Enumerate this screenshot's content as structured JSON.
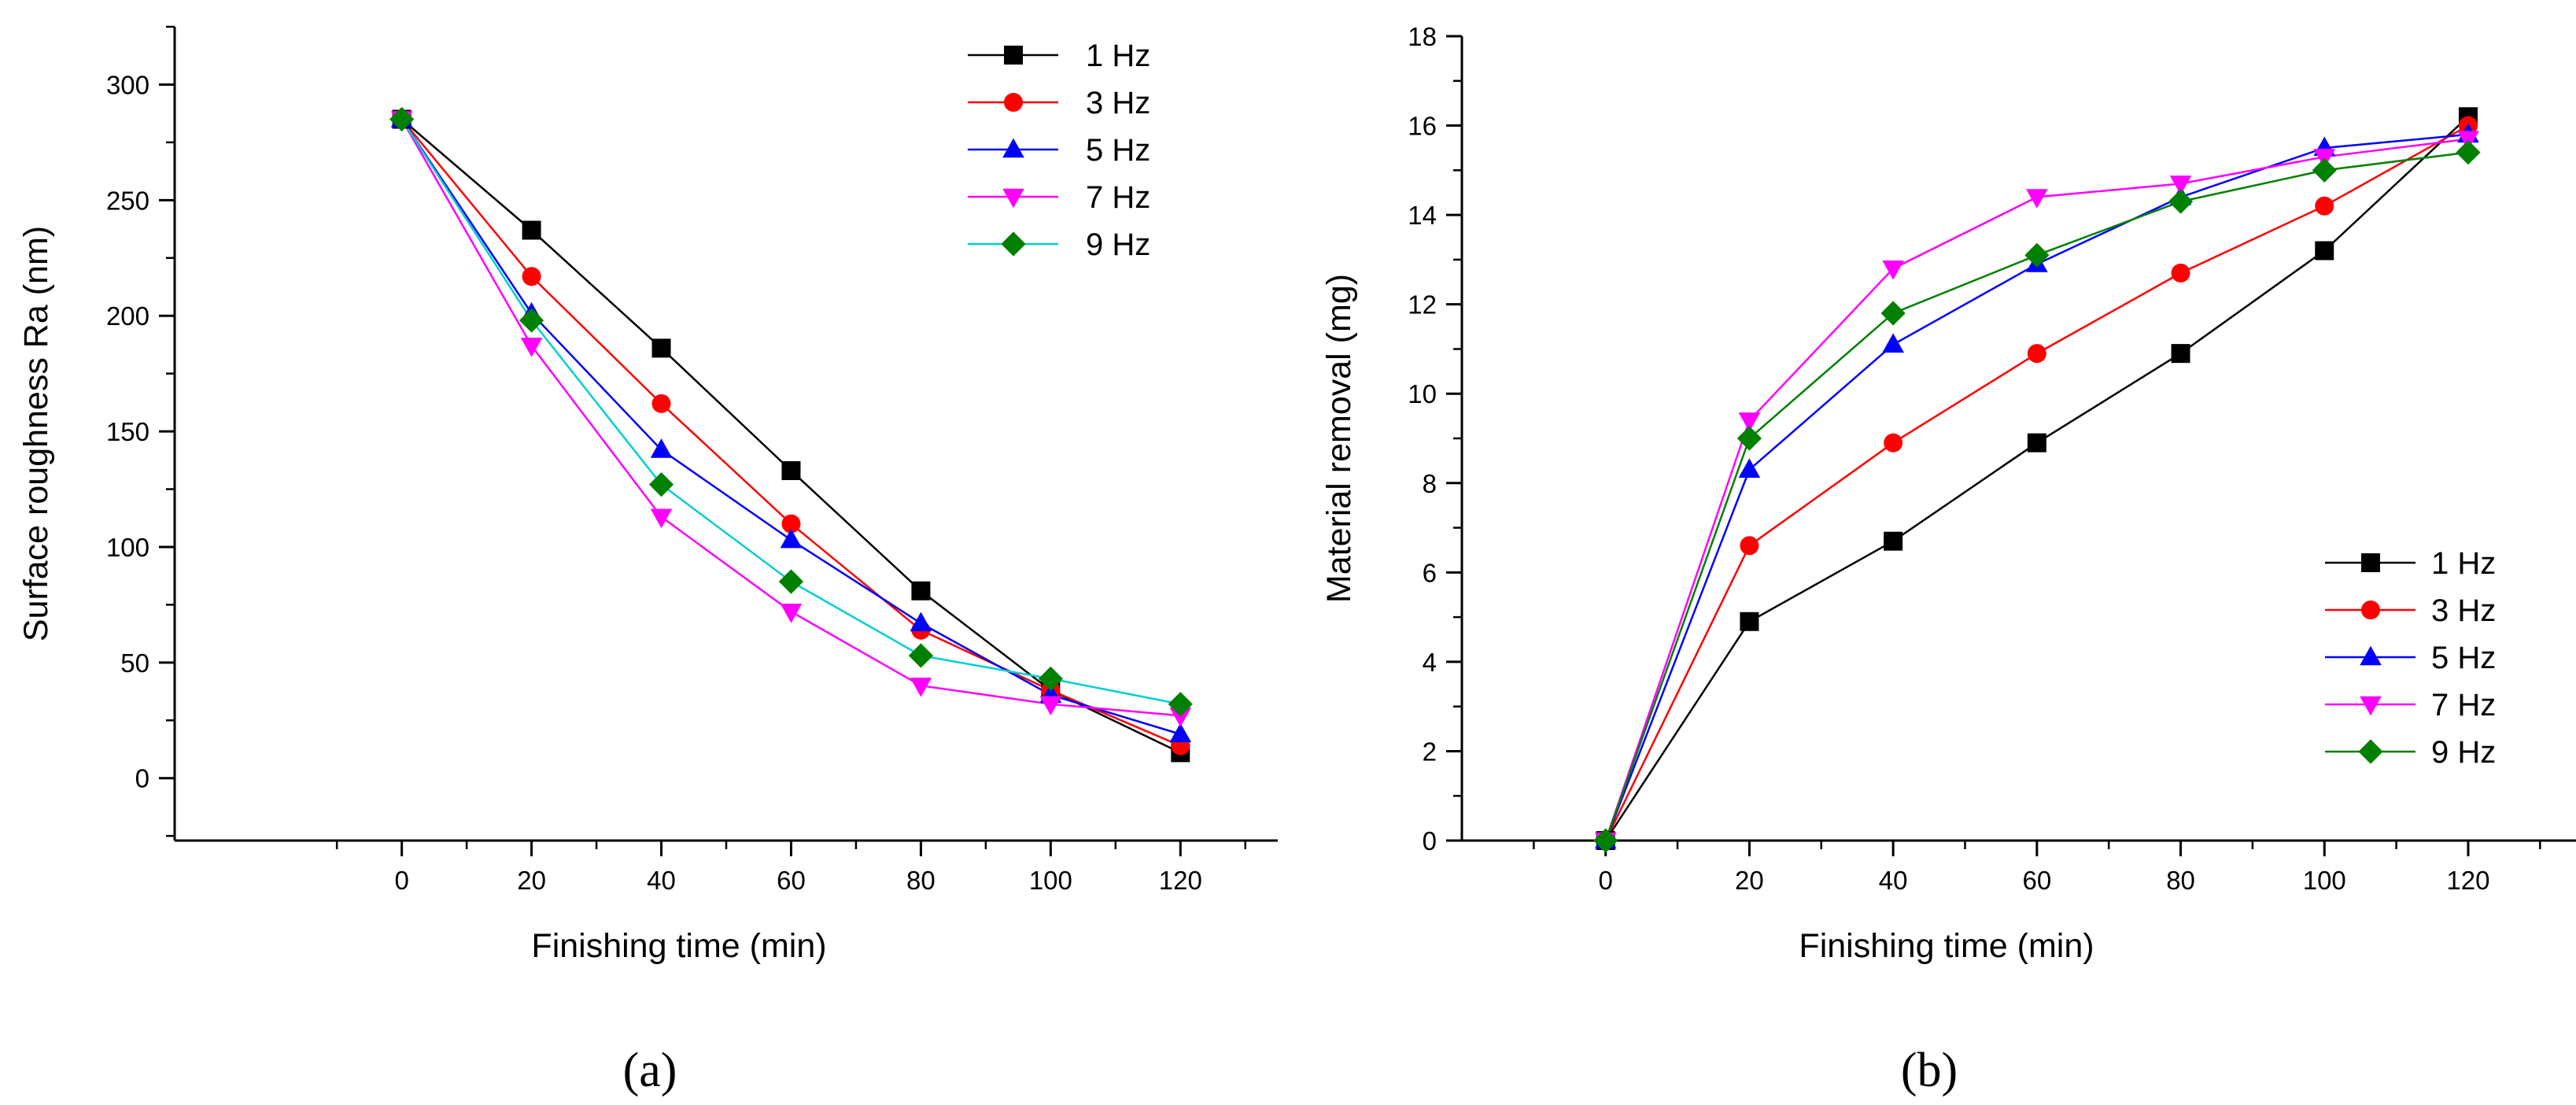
{
  "figure": {
    "panel_labels": [
      "(a)",
      "(b)"
    ]
  },
  "chart_data": [
    {
      "type": "line",
      "panel": "(a)",
      "title": "",
      "xlabel": "Finishing time (min)",
      "ylabel": "Surface roughness Ra (nm)",
      "xlim": [
        -35,
        135
      ],
      "ylim": [
        -27,
        325
      ],
      "xticks": [
        0,
        20,
        40,
        60,
        80,
        100,
        120
      ],
      "yticks": [
        0,
        50,
        100,
        150,
        200,
        250,
        300
      ],
      "legend_position": "top-right",
      "x": [
        0,
        20,
        40,
        60,
        80,
        100,
        120
      ],
      "series": [
        {
          "name": "1 Hz",
          "color": "#000000",
          "marker": "square",
          "values": [
            285,
            237,
            186,
            133,
            81,
            38,
            11
          ]
        },
        {
          "name": "3 Hz",
          "color": "#ff0000",
          "marker": "circle",
          "values": [
            285,
            217,
            162,
            110,
            64,
            38,
            14
          ]
        },
        {
          "name": "5 Hz",
          "color": "#0000ff",
          "marker": "triangle-up",
          "values": [
            285,
            201,
            142,
            103,
            67,
            36,
            19
          ]
        },
        {
          "name": "7 Hz",
          "color": "#ff00ff",
          "marker": "triangle-down",
          "values": [
            285,
            187,
            113,
            72,
            40,
            32,
            27
          ]
        },
        {
          "name": "9 Hz",
          "color": "#00d0d0",
          "marker": "diamond",
          "values": [
            285,
            198,
            127,
            85,
            53,
            43,
            32
          ]
        }
      ],
      "series_marker_fill": {
        "9 Hz": "#008000"
      }
    },
    {
      "type": "line",
      "panel": "(b)",
      "title": "",
      "xlabel": "Finishing time (min)",
      "ylabel": "Material removal (mg)",
      "xlim": [
        -20,
        135
      ],
      "ylim": [
        0,
        18
      ],
      "xticks": [
        0,
        20,
        40,
        60,
        80,
        100,
        120
      ],
      "yticks": [
        0,
        2,
        4,
        6,
        8,
        10,
        12,
        14,
        16,
        18
      ],
      "legend_position": "bottom-right",
      "x": [
        0,
        20,
        40,
        60,
        80,
        100,
        120
      ],
      "series": [
        {
          "name": "1 Hz",
          "color": "#000000",
          "marker": "square",
          "values": [
            0,
            4.9,
            6.7,
            8.9,
            10.9,
            13.2,
            16.2
          ]
        },
        {
          "name": "3 Hz",
          "color": "#ff0000",
          "marker": "circle",
          "values": [
            0,
            6.6,
            8.9,
            10.9,
            12.7,
            14.2,
            16.0
          ]
        },
        {
          "name": "5 Hz",
          "color": "#0000ff",
          "marker": "triangle-up",
          "values": [
            0,
            8.3,
            11.1,
            12.9,
            14.4,
            15.5,
            15.8
          ]
        },
        {
          "name": "7 Hz",
          "color": "#ff00ff",
          "marker": "triangle-down",
          "values": [
            0,
            9.4,
            12.8,
            14.4,
            14.7,
            15.3,
            15.7
          ]
        },
        {
          "name": "9 Hz",
          "color": "#008000",
          "marker": "diamond",
          "values": [
            0,
            9.0,
            11.8,
            13.1,
            14.3,
            15.0,
            15.4
          ]
        }
      ]
    }
  ]
}
